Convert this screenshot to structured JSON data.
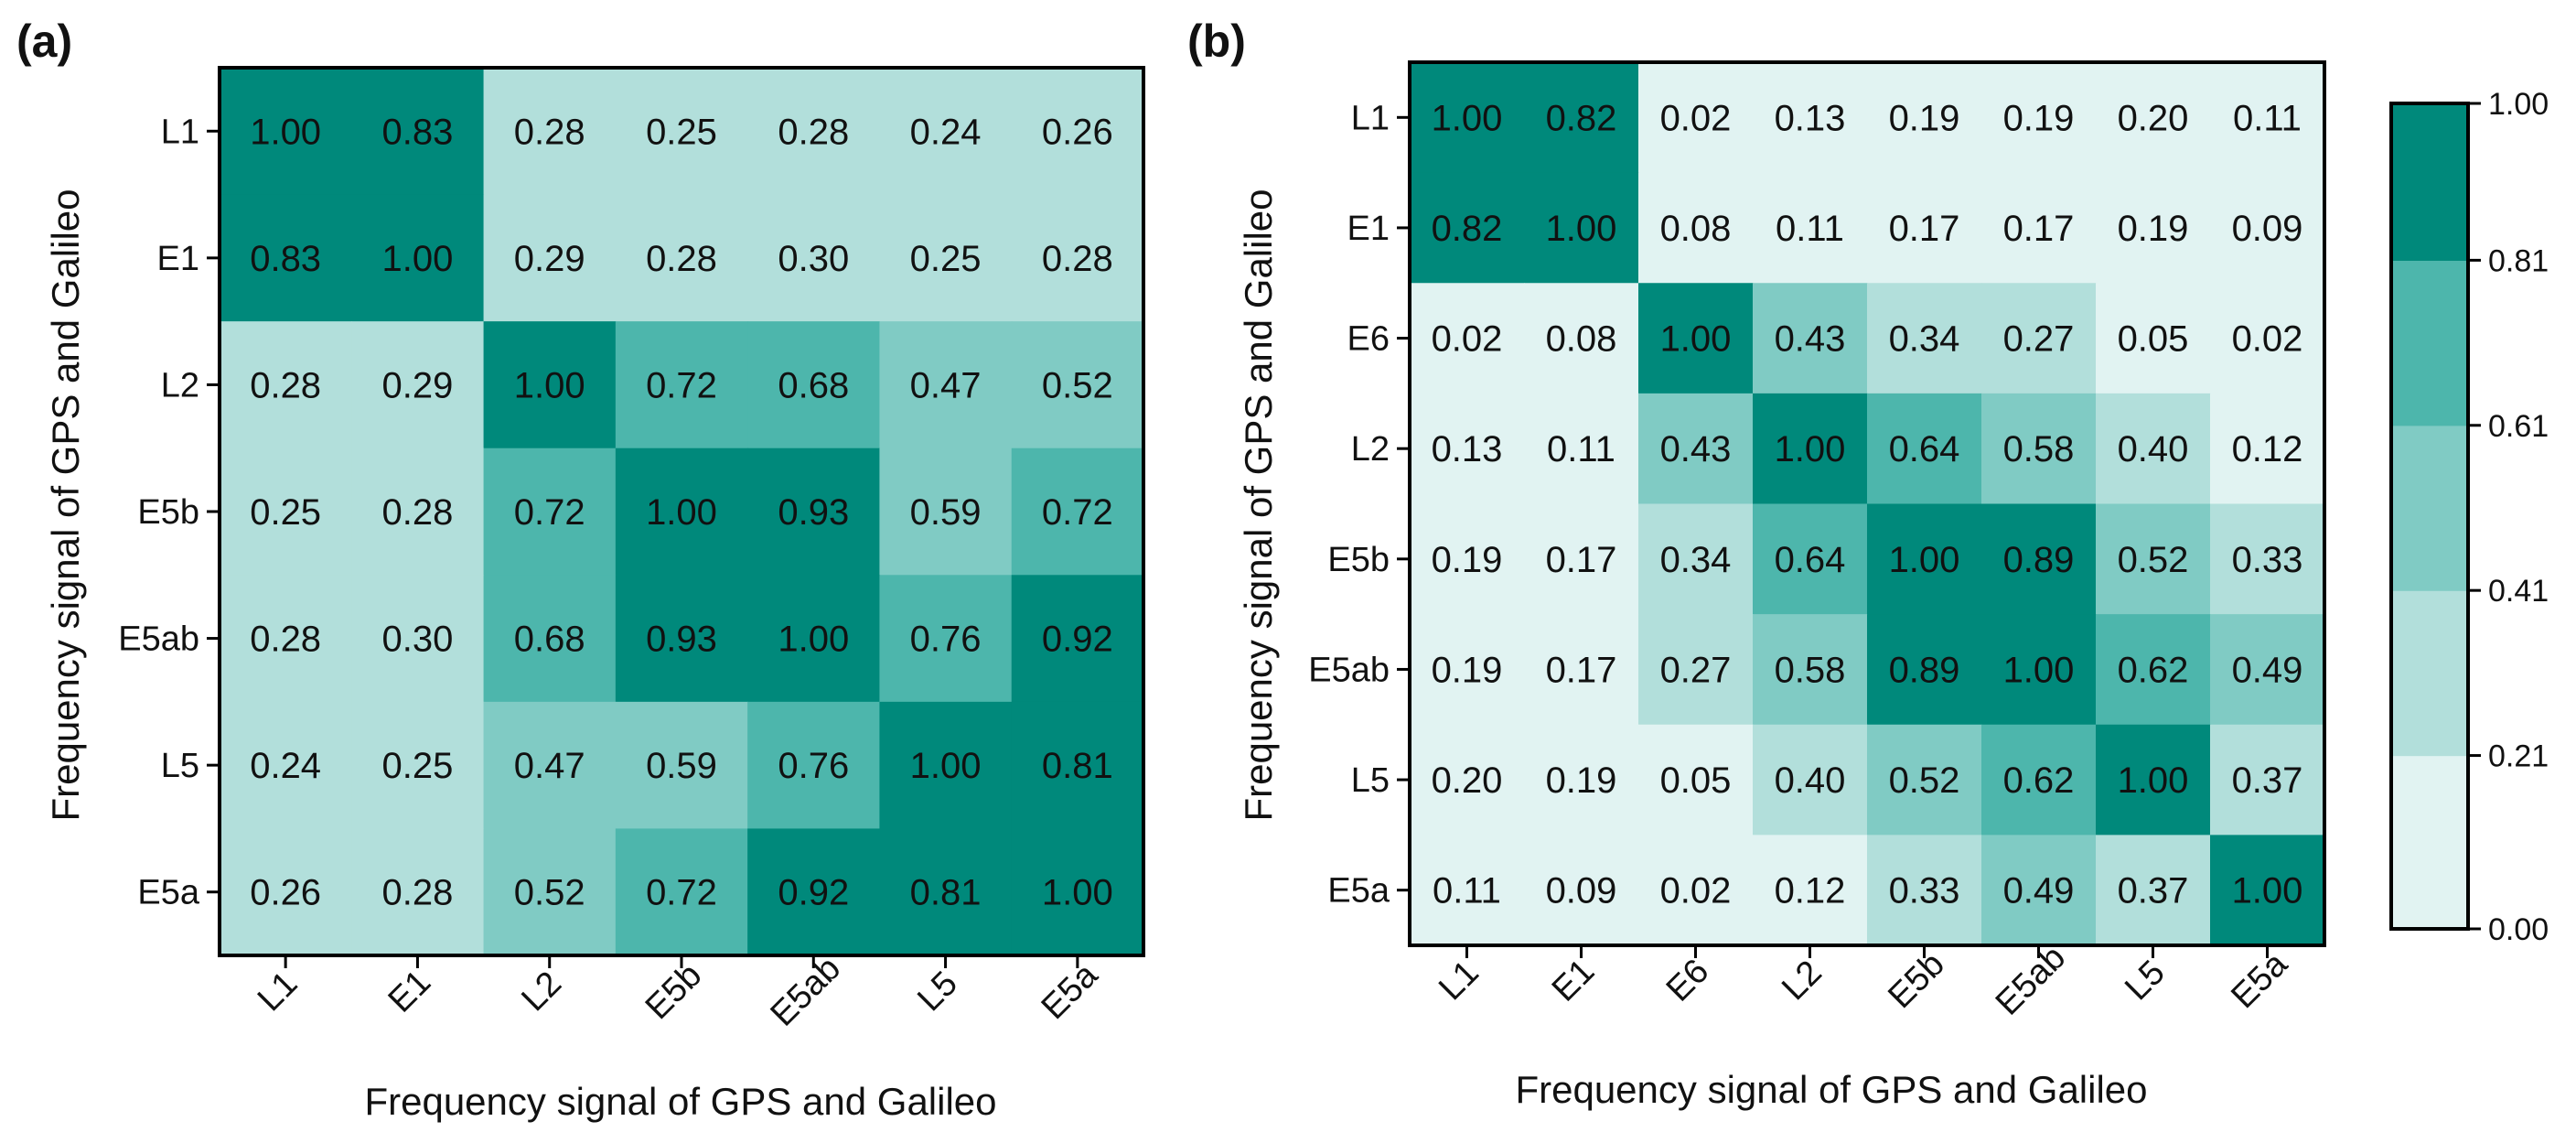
{
  "chart_data": [
    {
      "type": "heatmap",
      "panel_label": "(a)",
      "xlabel": "Frequency signal of GPS and Galileo",
      "ylabel": "Frequency signal of GPS and Galileo",
      "categories": [
        "L1",
        "E1",
        "L2",
        "E5b",
        "E5ab",
        "L5",
        "E5a"
      ],
      "values": [
        [
          "1.00",
          "0.83",
          "0.28",
          "0.25",
          "0.28",
          "0.24",
          "0.26"
        ],
        [
          "0.83",
          "1.00",
          "0.29",
          "0.28",
          "0.30",
          "0.25",
          "0.28"
        ],
        [
          "0.28",
          "0.29",
          "1.00",
          "0.72",
          "0.68",
          "0.47",
          "0.52"
        ],
        [
          "0.25",
          "0.28",
          "0.72",
          "1.00",
          "0.93",
          "0.59",
          "0.72"
        ],
        [
          "0.28",
          "0.30",
          "0.68",
          "0.93",
          "1.00",
          "0.76",
          "0.92"
        ],
        [
          "0.24",
          "0.25",
          "0.47",
          "0.59",
          "0.76",
          "1.00",
          "0.81"
        ],
        [
          "0.26",
          "0.28",
          "0.52",
          "0.72",
          "0.92",
          "0.81",
          "1.00"
        ]
      ]
    },
    {
      "type": "heatmap",
      "panel_label": "(b)",
      "xlabel": "Frequency signal of GPS and Galileo",
      "ylabel": "Frequency signal of GPS and Galileo",
      "categories": [
        "L1",
        "E1",
        "E6",
        "L2",
        "E5b",
        "E5ab",
        "L5",
        "E5a"
      ],
      "values": [
        [
          "1.00",
          "0.82",
          "0.02",
          "0.13",
          "0.19",
          "0.19",
          "0.20",
          "0.11"
        ],
        [
          "0.82",
          "1.00",
          "0.08",
          "0.11",
          "0.17",
          "0.17",
          "0.19",
          "0.09"
        ],
        [
          "0.02",
          "0.08",
          "1.00",
          "0.43",
          "0.34",
          "0.27",
          "0.05",
          "0.02"
        ],
        [
          "0.13",
          "0.11",
          "0.43",
          "1.00",
          "0.64",
          "0.58",
          "0.40",
          "0.12"
        ],
        [
          "0.19",
          "0.17",
          "0.34",
          "0.64",
          "1.00",
          "0.89",
          "0.52",
          "0.33"
        ],
        [
          "0.19",
          "0.17",
          "0.27",
          "0.58",
          "0.89",
          "1.00",
          "0.62",
          "0.49"
        ],
        [
          "0.20",
          "0.19",
          "0.05",
          "0.40",
          "0.52",
          "0.62",
          "1.00",
          "0.37"
        ],
        [
          "0.11",
          "0.09",
          "0.02",
          "0.12",
          "0.33",
          "0.49",
          "0.37",
          "1.00"
        ]
      ]
    }
  ],
  "colorbar": {
    "ticks": [
      "0.00",
      "0.21",
      "0.41",
      "0.61",
      "0.81",
      "1.00"
    ],
    "bins": [
      0.0,
      0.21,
      0.41,
      0.61,
      0.81,
      1.0
    ],
    "colors": [
      "#e1f3f2",
      "#b2dfdb",
      "#80cbc4",
      "#4db6ac",
      "#00897b"
    ],
    "border_color": "#000000"
  }
}
